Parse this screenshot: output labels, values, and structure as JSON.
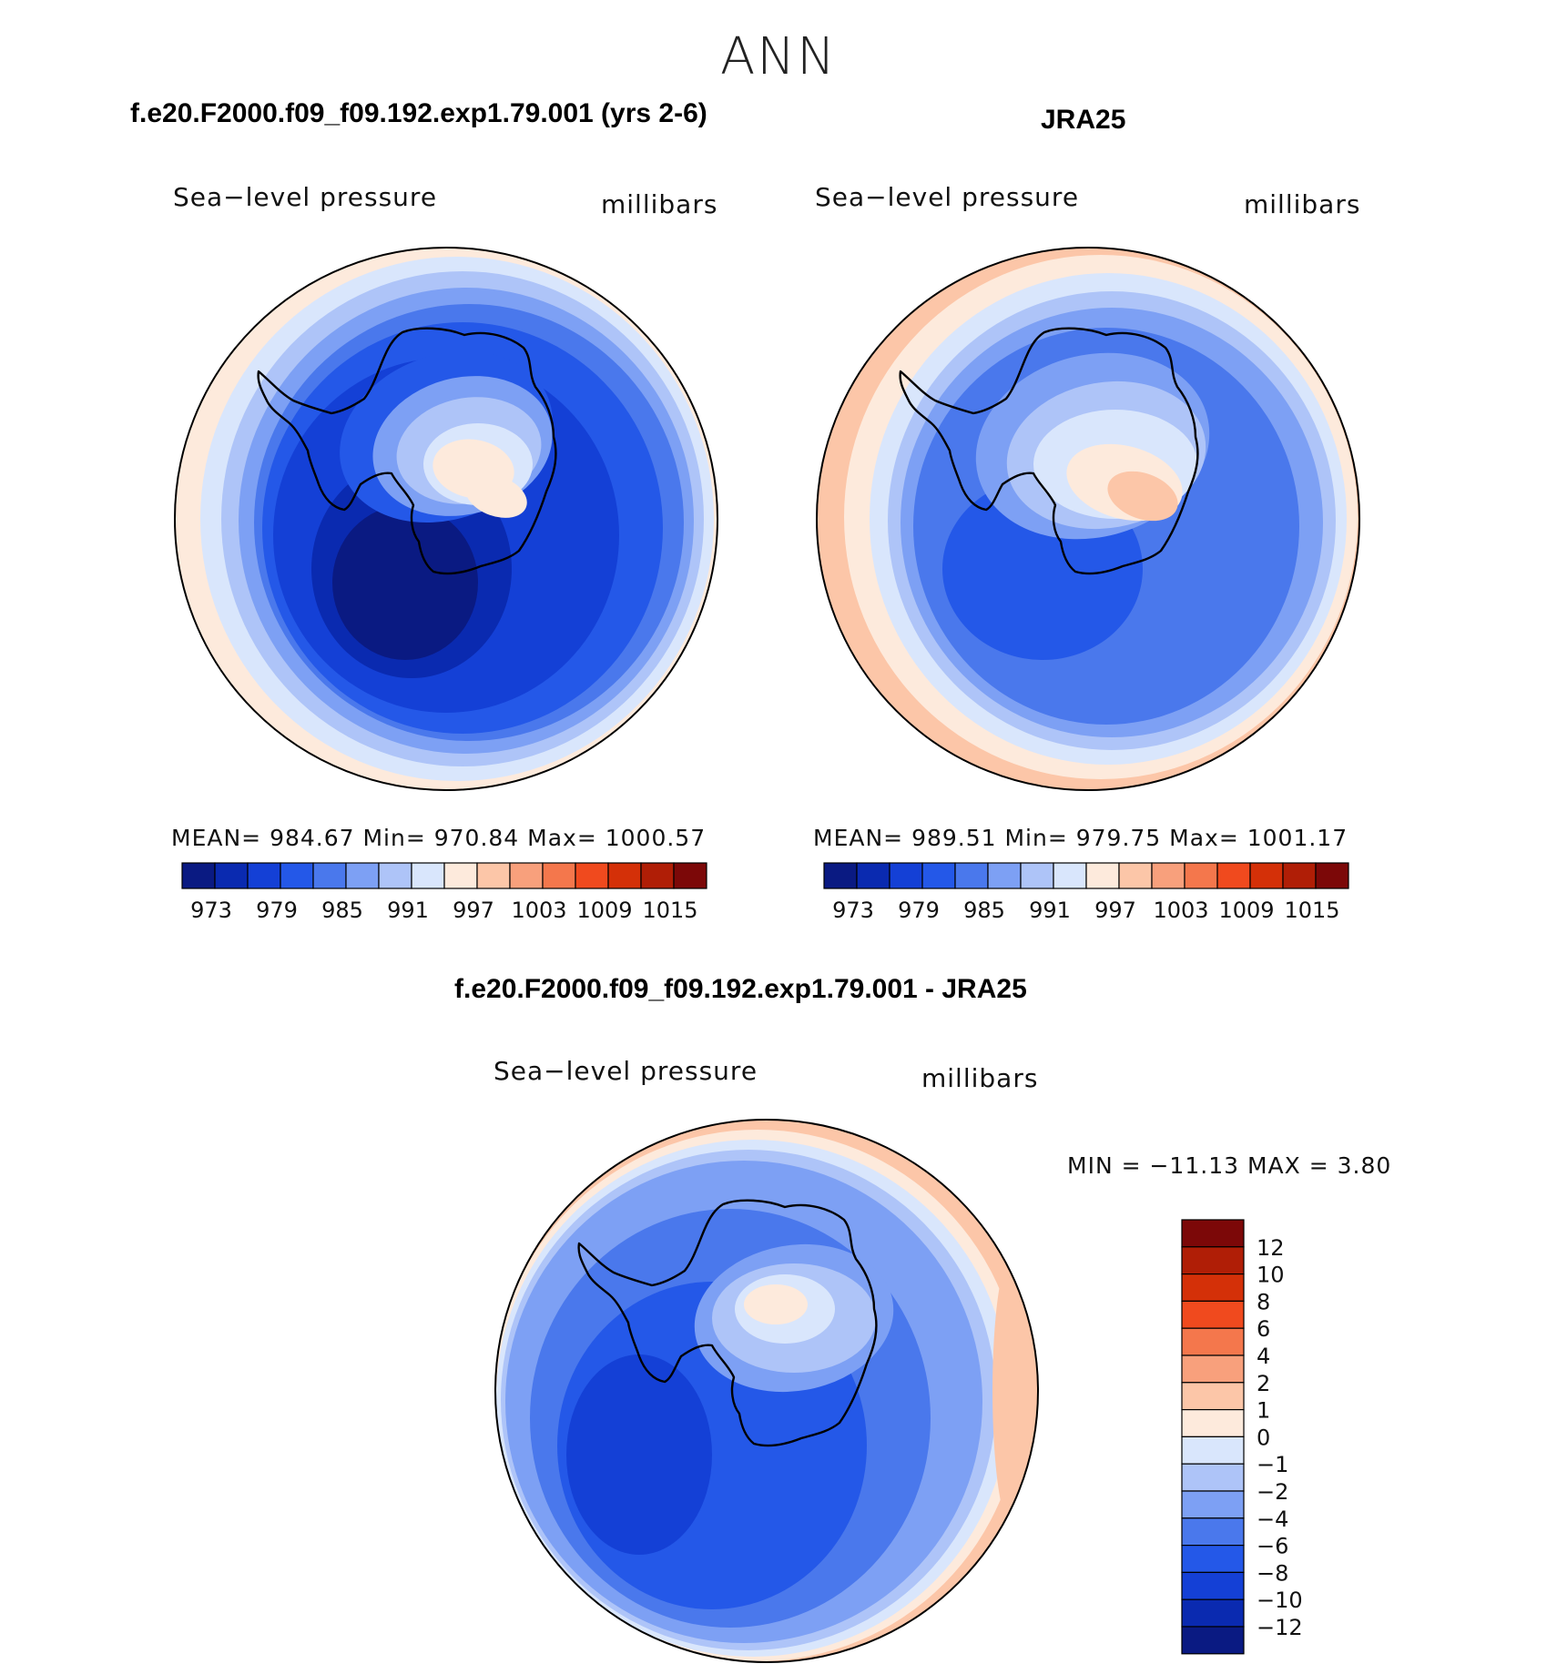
{
  "season": "ANN",
  "colors": {
    "abs_scale": [
      "#0a1a82",
      "#0a2ab0",
      "#1440d6",
      "#2458e8",
      "#4a78ec",
      "#7da0f4",
      "#aec4f8",
      "#d9e6fc",
      "#fdeadc",
      "#fcc6a8",
      "#f8a07c",
      "#f4774c",
      "#f04a1e",
      "#d43008",
      "#b01e06",
      "#7c0808"
    ],
    "diff_scale": [
      "#0a1a82",
      "#0a2ab0",
      "#1440d6",
      "#2458e8",
      "#4a78ec",
      "#7da0f4",
      "#aec4f8",
      "#d9e6fc",
      "#fdeadc",
      "#fcc6a8",
      "#f8a07c",
      "#f4774c",
      "#f04a1e",
      "#d43008",
      "#b01e06",
      "#7c0808"
    ]
  },
  "panels": [
    {
      "title": "f.e20.F2000.f09_f09.192.exp1.79.001 (yrs 2-6)",
      "variable": "Sea−level pressure",
      "units": "millibars",
      "stats": "MEAN= 984.67   Min= 970.84   Max= 1000.57",
      "ticks": [
        "973",
        "979",
        "985",
        "991",
        "997",
        "1003",
        "1009",
        "1015"
      ]
    },
    {
      "title": "JRA25",
      "variable": "Sea−level pressure",
      "units": "millibars",
      "stats": "MEAN= 989.51   Min= 979.75   Max= 1001.17",
      "ticks": [
        "973",
        "979",
        "985",
        "991",
        "997",
        "1003",
        "1009",
        "1015"
      ]
    },
    {
      "title": "f.e20.F2000.f09_f09.192.exp1.79.001 - JRA25",
      "variable": "Sea−level pressure",
      "units": "millibars",
      "stats": "MIN = −11.13 MAX =    3.80",
      "ticks": [
        "12",
        "10",
        "8",
        "6",
        "4",
        "2",
        "1",
        "0",
        "−1",
        "−2",
        "−4",
        "−6",
        "−8",
        "−10",
        "−12"
      ]
    }
  ]
}
